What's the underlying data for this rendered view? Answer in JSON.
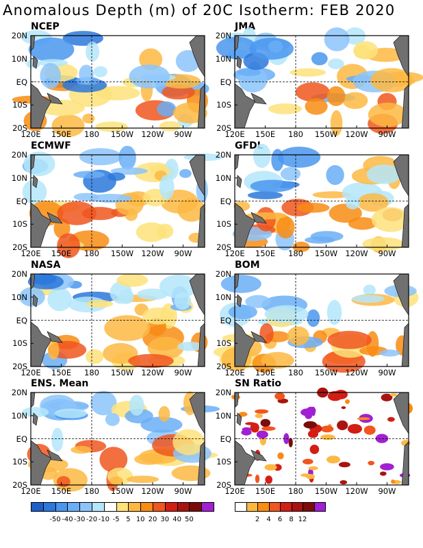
{
  "title": "Anomalous Depth (m) of 20C Isotherm: FEB 2020",
  "panels": [
    {
      "name": "NCEP"
    },
    {
      "name": "JMA"
    },
    {
      "name": "ECMWF"
    },
    {
      "name": "GFDL"
    },
    {
      "name": "NASA"
    },
    {
      "name": "BOM"
    },
    {
      "name": "ENS. Mean"
    },
    {
      "name": "SN Ratio"
    }
  ],
  "lat_labels": [
    "20N",
    "10N",
    "EQ",
    "10S",
    "20S"
  ],
  "lon_labels": [
    "120E",
    "150E",
    "180",
    "150W",
    "120W",
    "90W"
  ],
  "anomaly_colorbar": {
    "colors": [
      "#1e5ec8",
      "#2c78dc",
      "#4a96ee",
      "#6aaef6",
      "#8cc4fa",
      "#b4e6fa",
      "#ffffff",
      "#fde27a",
      "#fdb843",
      "#f88c14",
      "#f0561e",
      "#d21e14",
      "#a81410",
      "#7c0c0c",
      "#a020d2"
    ],
    "labels": [
      "-50",
      "-40",
      "-30",
      "-20",
      "-10",
      "-5",
      "5",
      "10",
      "20",
      "30",
      "40",
      "50"
    ]
  },
  "sn_colorbar": {
    "colors": [
      "#ffffff",
      "#fdb843",
      "#f88c14",
      "#f0561e",
      "#d21e14",
      "#a81410",
      "#7c0c0c",
      "#a020d2"
    ],
    "labels": [
      "2",
      "4",
      "6",
      "8",
      "12"
    ]
  }
}
